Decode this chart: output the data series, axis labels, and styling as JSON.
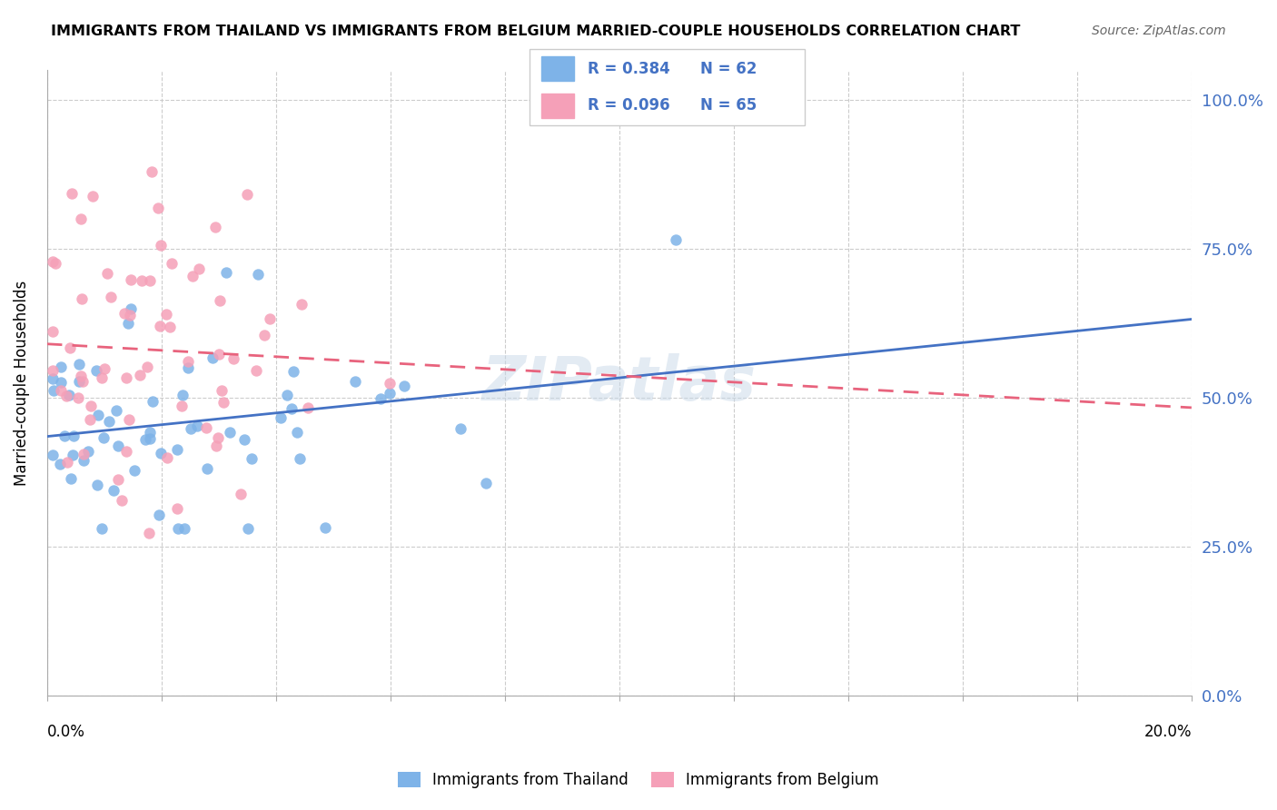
{
  "title": "IMMIGRANTS FROM THAILAND VS IMMIGRANTS FROM BELGIUM MARRIED-COUPLE HOUSEHOLDS CORRELATION CHART",
  "source": "Source: ZipAtlas.com",
  "ylabel": "Married-couple Households",
  "ytick_vals": [
    0.0,
    0.25,
    0.5,
    0.75,
    1.0
  ],
  "xlim": [
    0.0,
    0.2
  ],
  "ylim": [
    0.0,
    1.05
  ],
  "legend_r_thailand": "R = 0.384",
  "legend_n_thailand": "N = 62",
  "legend_r_belgium": "R = 0.096",
  "legend_n_belgium": "N = 65",
  "color_thailand": "#7eb3e8",
  "color_belgium": "#f5a0b8",
  "trendline_thailand_color": "#4472c4",
  "trendline_belgium_color": "#e8637d",
  "watermark": "ZIPatlas",
  "legend_text_color": "#4472c4",
  "right_tick_color": "#4472c4",
  "grid_color": "#cccccc",
  "spine_color": "#aaaaaa"
}
